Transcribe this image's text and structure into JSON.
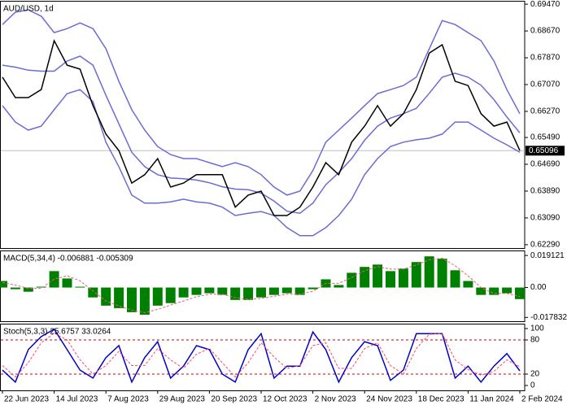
{
  "chart_data": [
    {
      "type": "line",
      "title": "AUD/USD, 1d",
      "categories": [
        "22 Jun 2023",
        null,
        null,
        null,
        "14 Jul 2023",
        null,
        null,
        null,
        "7 Aug 2023",
        null,
        null,
        null,
        "29 Aug 2023",
        null,
        null,
        null,
        "20 Sep 2023",
        null,
        null,
        null,
        "12 Oct 2023",
        null,
        null,
        null,
        "2 Nov 2023",
        null,
        null,
        null,
        "24 Nov 2023",
        null,
        null,
        null,
        "18 Dec 2023",
        null,
        null,
        null,
        "11 Jan 2024",
        null,
        null,
        null,
        "2 Feb 2024"
      ],
      "series": [
        {
          "color": "#6b6bd6",
          "values": [
            0.6886,
            0.6923,
            0.693,
            0.6911,
            0.6862,
            0.6874,
            0.6891,
            0.6874,
            0.6814,
            0.6717,
            0.6632,
            0.6571,
            0.6522,
            0.6498,
            0.6486,
            0.6486,
            0.6474,
            0.6462,
            0.6474,
            0.6462,
            0.6438,
            0.6401,
            0.6377,
            0.6389,
            0.645,
            0.6535,
            0.6571,
            0.6607,
            0.6644,
            0.668,
            0.6692,
            0.6704,
            0.6729,
            0.6814,
            0.6898,
            0.6886,
            0.6862,
            0.6838,
            0.6777,
            0.6692,
            0.662
          ]
        },
        {
          "color": "#6b6bd6",
          "values": [
            0.6765,
            0.6759,
            0.675,
            0.6747,
            0.6747,
            0.6777,
            0.6792,
            0.6765,
            0.6675,
            0.659,
            0.6505,
            0.6462,
            0.6438,
            0.6428,
            0.6426,
            0.6422,
            0.6414,
            0.6402,
            0.6395,
            0.6393,
            0.6383,
            0.6359,
            0.6329,
            0.6323,
            0.6353,
            0.6408,
            0.6444,
            0.6486,
            0.6541,
            0.6583,
            0.6607,
            0.662,
            0.6636,
            0.6681,
            0.6729,
            0.6741,
            0.6729,
            0.6705,
            0.6662,
            0.661,
            0.6563
          ]
        },
        {
          "color": "#6b6bd6",
          "values": [
            0.6644,
            0.6595,
            0.6571,
            0.6583,
            0.6632,
            0.668,
            0.6692,
            0.6656,
            0.6535,
            0.6462,
            0.6377,
            0.6353,
            0.6353,
            0.6357,
            0.6365,
            0.6357,
            0.6353,
            0.6341,
            0.6316,
            0.6323,
            0.6328,
            0.6316,
            0.628,
            0.6256,
            0.6256,
            0.628,
            0.6316,
            0.6365,
            0.6438,
            0.6486,
            0.6522,
            0.6535,
            0.6542,
            0.6547,
            0.6559,
            0.6595,
            0.6595,
            0.6571,
            0.6547,
            0.6527,
            0.6505
          ]
        },
        {
          "color": "#000000",
          "values": [
            0.6729,
            0.6668,
            0.6668,
            0.6692,
            0.6838,
            0.6765,
            0.6753,
            0.6644,
            0.6559,
            0.651,
            0.6413,
            0.6438,
            0.6486,
            0.6401,
            0.6413,
            0.6438,
            0.6438,
            0.6438,
            0.6341,
            0.6377,
            0.6389,
            0.6316,
            0.6316,
            0.6341,
            0.6401,
            0.6474,
            0.6438,
            0.6535,
            0.6583,
            0.6644,
            0.6583,
            0.662,
            0.6692,
            0.6801,
            0.6826,
            0.6717,
            0.6704,
            0.662,
            0.6583,
            0.6595,
            0.651
          ]
        }
      ],
      "ylim": [
        0.6219,
        0.6957
      ],
      "yticks": [
        {
          "value": 0.6947,
          "label": "0.69470"
        },
        {
          "value": 0.6867,
          "label": "0.68670"
        },
        {
          "value": 0.6787,
          "label": "0.67870"
        },
        {
          "value": 0.6707,
          "label": "0.67070"
        },
        {
          "value": 0.6627,
          "label": "0.66270"
        },
        {
          "value": 0.6549,
          "label": "0.65490"
        },
        {
          "value": 0.6469,
          "label": "0.64690"
        },
        {
          "value": 0.6389,
          "label": "0.63890"
        },
        {
          "value": 0.6309,
          "label": "0.63090"
        },
        {
          "value": 0.6229,
          "label": "0.62290"
        }
      ],
      "last_price": {
        "value": 0.65096,
        "label": "0.65096"
      }
    },
    {
      "type": "bar",
      "title": "MACD(5,34,4) -0.006881 -0.005309",
      "series": [
        {
          "type": "bar",
          "color": "#008000",
          "values": [
            0.0039,
            -0.001,
            -0.0025,
            0.0005,
            0.0098,
            0.0054,
            0.0005,
            -0.0059,
            -0.0108,
            -0.0123,
            -0.0147,
            -0.0162,
            -0.0108,
            -0.0093,
            -0.0059,
            -0.0044,
            -0.0034,
            -0.0044,
            -0.0074,
            -0.0074,
            -0.0059,
            -0.0044,
            -0.0034,
            -0.0044,
            -0.001,
            0.0049,
            0.0015,
            0.0088,
            0.0123,
            0.0137,
            0.0098,
            0.0113,
            0.0152,
            0.0186,
            0.0172,
            0.0103,
            0.0039,
            -0.0044,
            -0.0044,
            -0.0034,
            -0.0069
          ]
        },
        {
          "type": "line",
          "color": "#e0607a",
          "dashed": true,
          "values": [
            0.003,
            0.0015,
            -0.0005,
            -0.0005,
            0.005,
            0.007,
            0.004,
            -0.002,
            -0.008,
            -0.011,
            -0.0135,
            -0.015,
            -0.013,
            -0.0105,
            -0.008,
            -0.0055,
            -0.004,
            -0.004,
            -0.006,
            -0.007,
            -0.0065,
            -0.0052,
            -0.004,
            -0.004,
            -0.0022,
            0.0025,
            0.0025,
            0.006,
            0.01,
            0.0125,
            0.011,
            0.011,
            0.0135,
            0.0165,
            0.0175,
            0.013,
            0.007,
            0.0,
            -0.0035,
            -0.0035,
            -0.0053
          ]
        }
      ],
      "ylim": [
        -0.0201,
        0.0221
      ],
      "yticks": [
        0.019121,
        {
          "value": 0,
          "label": "0.00"
        },
        -0.017832
      ]
    },
    {
      "type": "line",
      "title": "Stoch(5,3,3) 25.6757 33.0264",
      "series": [
        {
          "color": "#0000cc",
          "values": [
            27,
            6,
            63,
            86,
            99,
            63,
            27,
            13,
            49,
            70,
            6,
            49,
            77,
            13,
            34,
            70,
            63,
            20,
            6,
            63,
            91,
            13,
            34,
            34,
            94,
            63,
            6,
            49,
            77,
            70,
            9,
            27,
            91,
            91,
            91,
            13,
            34,
            6,
            34,
            56,
            25.7
          ]
        },
        {
          "color": "#ff4466",
          "dashed": true,
          "values": [
            35,
            15,
            40,
            75,
            92,
            80,
            45,
            20,
            35,
            60,
            35,
            35,
            65,
            45,
            30,
            55,
            65,
            40,
            15,
            40,
            75,
            50,
            30,
            35,
            70,
            75,
            30,
            30,
            65,
            75,
            35,
            20,
            65,
            90,
            91,
            45,
            28,
            18,
            25,
            45,
            33.0
          ]
        }
      ],
      "ylim": [
        -8.6,
        108.6
      ],
      "yticks": [
        100,
        80,
        20,
        0
      ],
      "levels": [
        80,
        20
      ],
      "level_color": "#cc0000"
    }
  ]
}
